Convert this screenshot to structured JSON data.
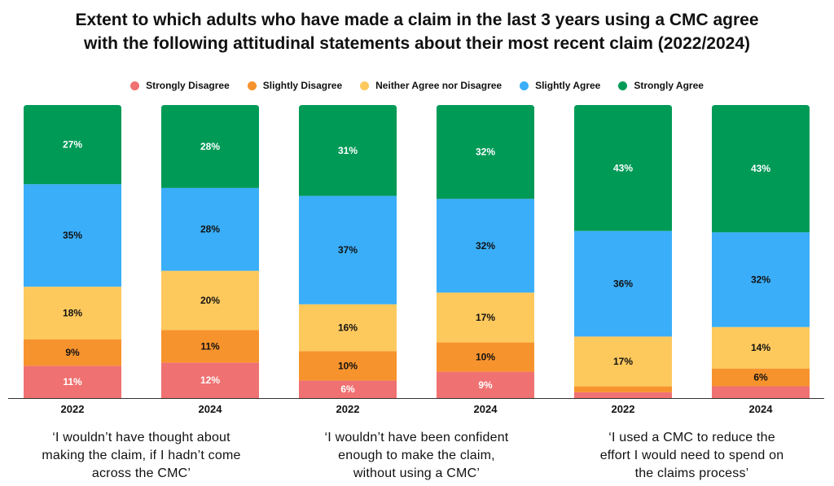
{
  "title_lines": [
    "Extent to which adults who have made a claim in the last 3 years using a CMC agree",
    "with the following attitudinal statements about their most recent claim (2022/2024)"
  ],
  "chart_data": {
    "type": "bar",
    "stacked": true,
    "title": "Extent to which adults who have made a claim in the last 3 years using a CMC agree with the following attitudinal statements about their most recent claim (2022/2024)",
    "categories": [
      "2022",
      "2024",
      "2022",
      "2024",
      "2022",
      "2024"
    ],
    "groups": [
      "‘I wouldn’t have thought about making the claim, if I hadn’t come across the CMC’",
      "‘I wouldn’t have been confident enough to make the claim, without using a CMC’",
      "‘I used a CMC to reduce the effort I would need to spend on the claims process’"
    ],
    "group_lines": [
      [
        "‘I wouldn’t have thought about",
        "making the claim, if I hadn’t come",
        "across the CMC’"
      ],
      [
        "‘I wouldn’t have been confident",
        "enough to make the claim,",
        "without using a CMC’"
      ],
      [
        "‘I used a CMC to reduce the",
        "effort I would need to spend on",
        "the claims process’"
      ]
    ],
    "series": [
      {
        "name": "Strongly Disagree",
        "color": "#f07171",
        "values": [
          11,
          12,
          6,
          9,
          2,
          4
        ],
        "labels": [
          "11%",
          "12%",
          "6%",
          "9%",
          "",
          ""
        ]
      },
      {
        "name": "Slightly Disagree",
        "color": "#f7932d",
        "values": [
          9,
          11,
          10,
          10,
          2,
          6
        ],
        "labels": [
          "9%",
          "11%",
          "10%",
          "10%",
          "",
          "6%"
        ]
      },
      {
        "name": "Neither Agree nor Disagree",
        "color": "#fdc95d",
        "values": [
          18,
          20,
          16,
          17,
          17,
          14
        ],
        "labels": [
          "18%",
          "20%",
          "16%",
          "17%",
          "17%",
          "14%"
        ]
      },
      {
        "name": "Slightly Agree",
        "color": "#3aaef9",
        "values": [
          35,
          28,
          37,
          32,
          36,
          32
        ],
        "labels": [
          "35%",
          "28%",
          "37%",
          "32%",
          "36%",
          "32%"
        ]
      },
      {
        "name": "Strongly Agree",
        "color": "#009a57",
        "values": [
          27,
          28,
          31,
          32,
          43,
          43
        ],
        "labels": [
          "27%",
          "28%",
          "31%",
          "32%",
          "43%",
          "43%"
        ]
      }
    ],
    "ylim": [
      0,
      100
    ],
    "grid": false,
    "legend_position": "top-center"
  }
}
